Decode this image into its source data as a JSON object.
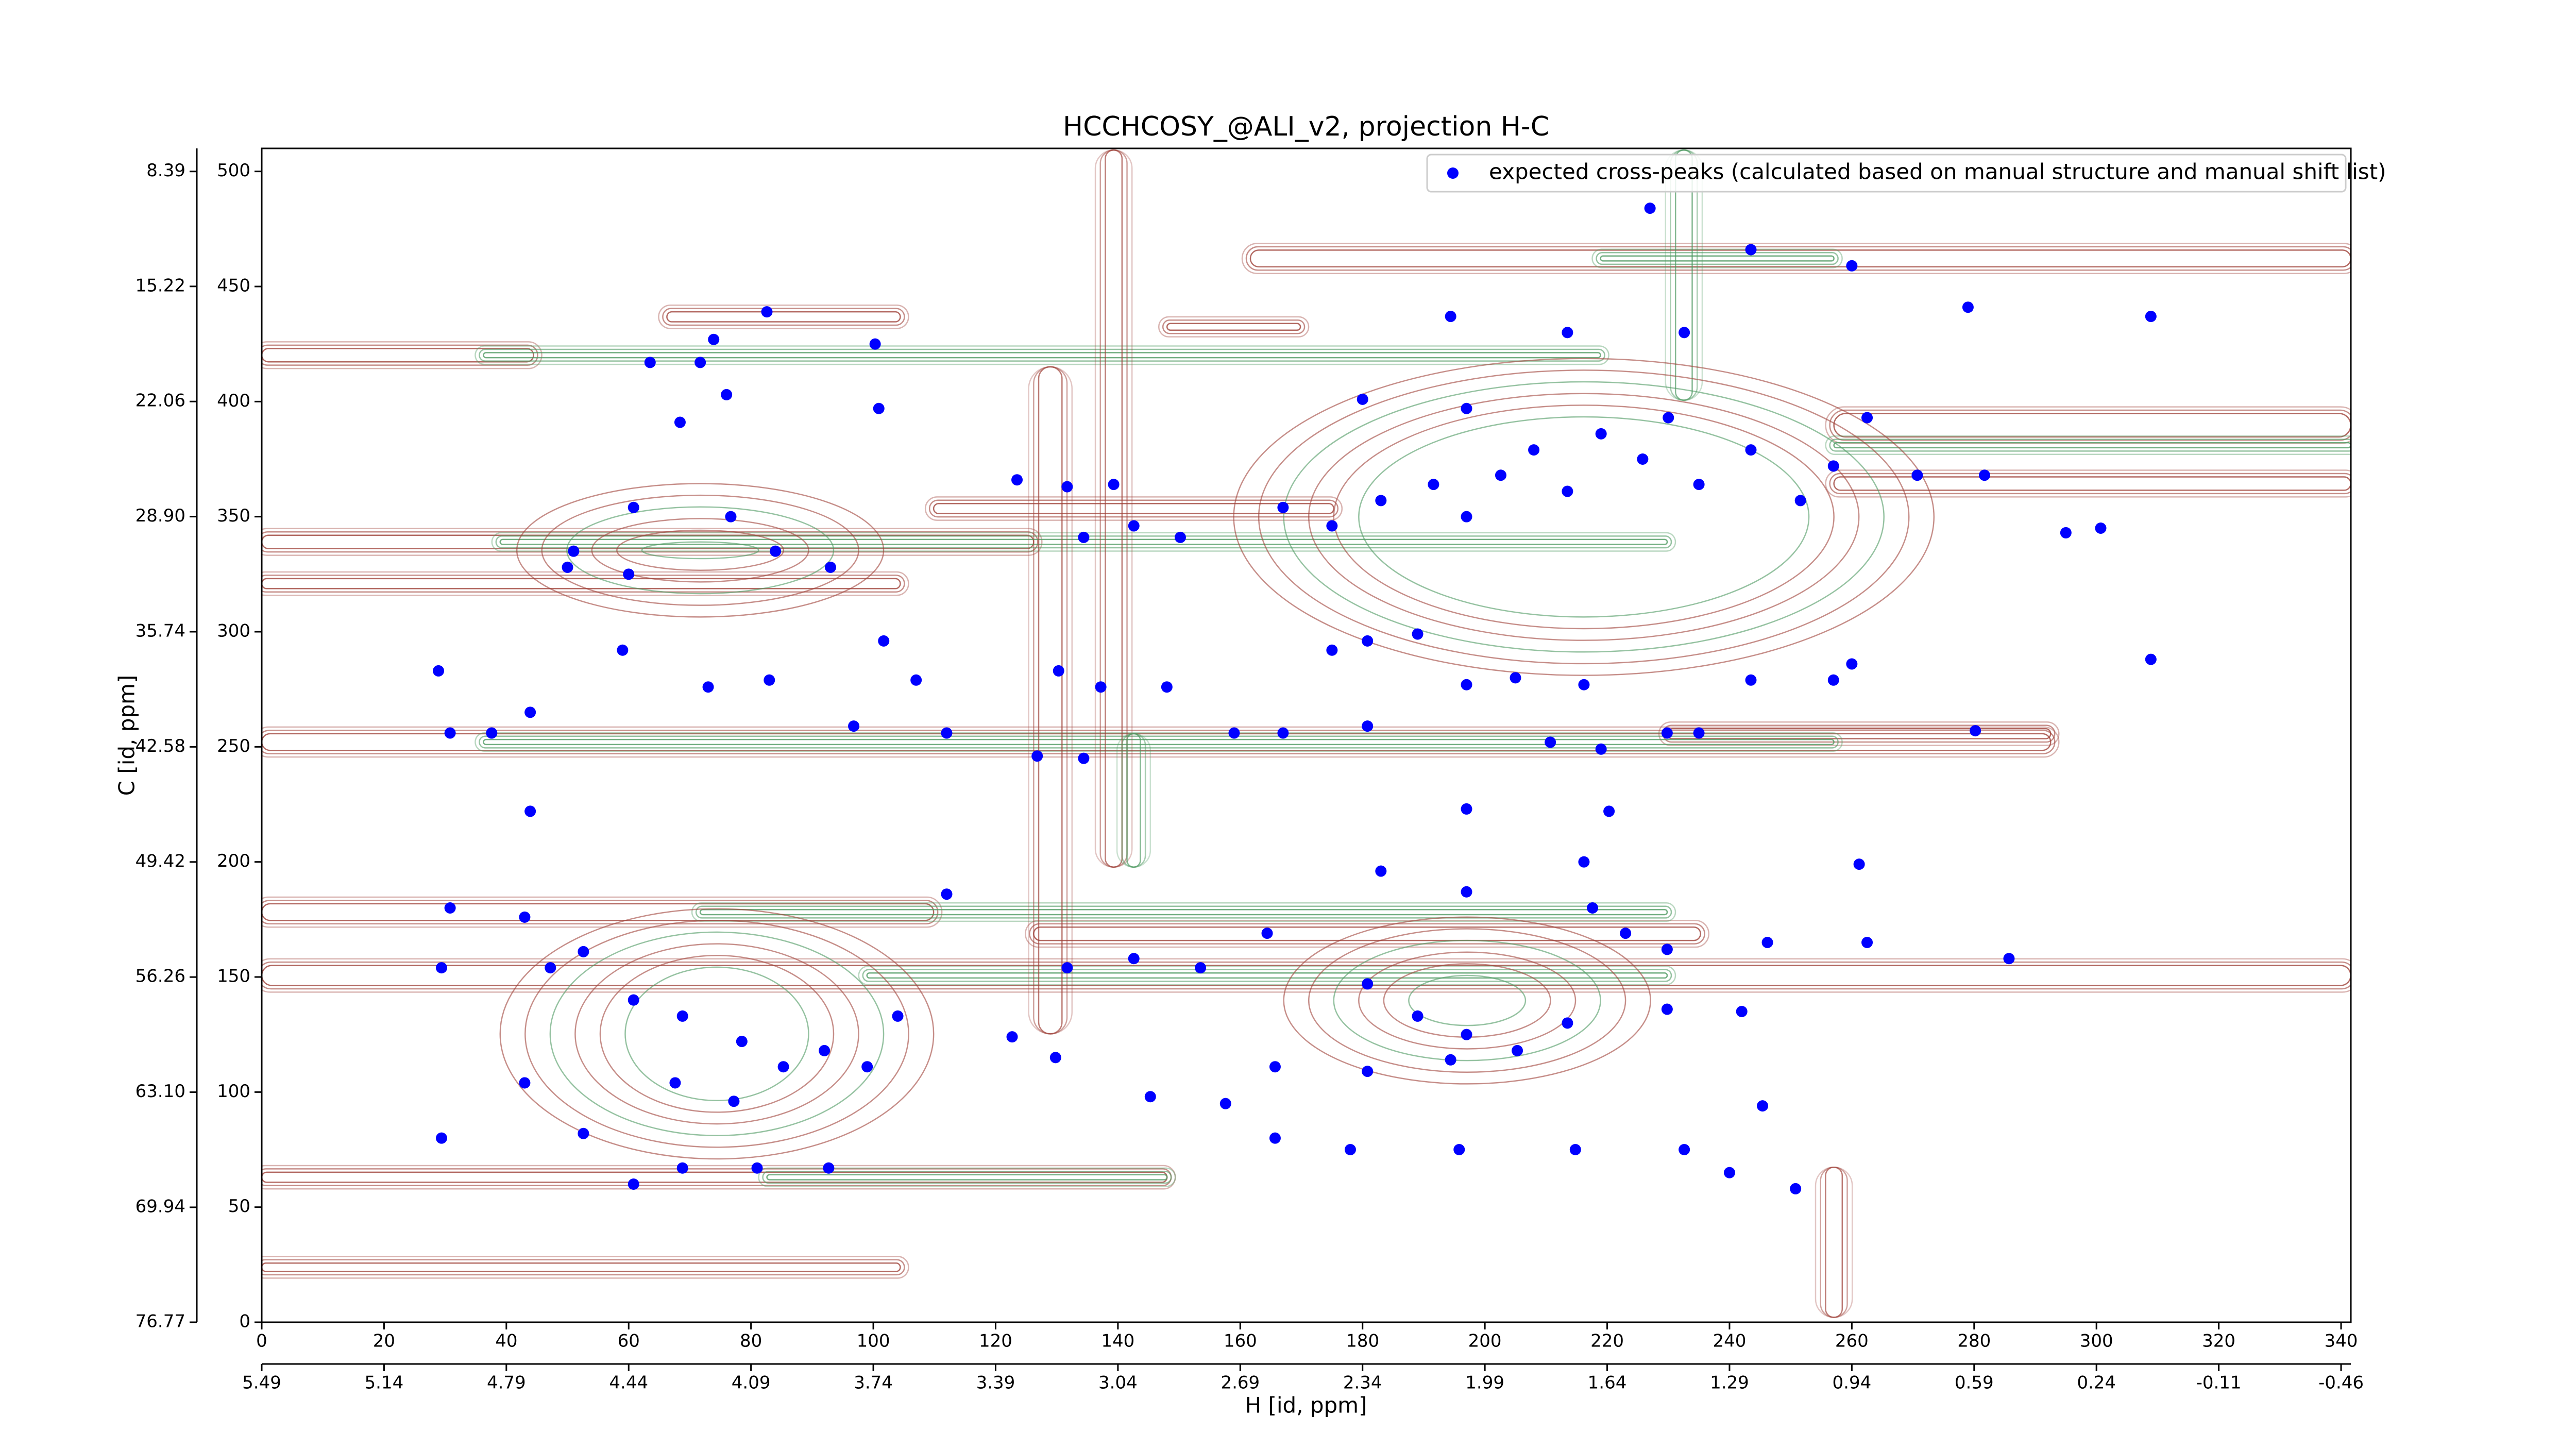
{
  "chart_data": {
    "type": "scatter",
    "title": "HCCHCOSY_@ALI_v2, projection H-C",
    "x_label": "H [id, ppm]",
    "y_label": "C [id, ppm]",
    "xlim": [
      0,
      341.6
    ],
    "xticks": [
      0,
      20,
      40,
      60,
      80,
      100,
      120,
      140,
      160,
      180,
      200,
      220,
      240,
      260,
      280,
      300,
      320,
      340
    ],
    "x2lim": [
      5.49,
      -0.488
    ],
    "x2ticks": [
      5.49,
      5.14,
      4.79,
      4.44,
      4.09,
      3.74,
      3.39,
      3.04,
      2.69,
      2.34,
      1.99,
      1.64,
      1.29,
      0.94,
      0.59,
      0.24,
      -0.11,
      -0.46
    ],
    "ylim": [
      0,
      510
    ],
    "yticks": [
      0,
      50,
      100,
      150,
      200,
      250,
      300,
      350,
      400,
      450,
      500
    ],
    "y2lim": [
      76.77,
      7.02
    ],
    "y2ticks": [
      76.77,
      69.94,
      {
        "value": 63.1,
        "label": "63.10"
      },
      56.26,
      49.42,
      42.58,
      35.74,
      {
        "value": 28.9,
        "label": "28.90"
      },
      22.06,
      15.22,
      8.39
    ],
    "legend": "upper right",
    "series": [
      {
        "name": "expected cross-peaks (calculated based on manual structure and manual shift list)",
        "color": "#0000ff",
        "x": [
          82.6,
          73.9,
          71.7,
          63.5,
          76,
          68.4,
          100.3,
          100.9,
          60.8,
          76.7,
          84,
          93,
          51,
          50,
          60,
          101.7,
          28.9,
          59,
          73,
          83,
          107,
          30.8,
          37.6,
          43.9,
          96.8,
          112,
          43.9,
          29.4,
          43,
          30.8,
          47.2,
          52.6,
          60.8,
          68.8,
          78.5,
          85.3,
          92,
          99,
          104,
          112,
          67.6,
          77.2,
          43,
          29.4,
          52.6,
          60.8,
          68.8,
          81,
          92.7,
          123.5,
          131.7,
          139.3,
          142.6,
          134.4,
          150.2,
          167,
          175,
          183,
          191.6,
          197,
          202.6,
          208,
          213.5,
          219,
          225.8,
          230,
          235,
          243.5,
          251.6,
          257,
          262.5,
          270.7,
          281.7,
          295,
          300.7,
          260,
          279,
          308.9,
          227,
          243.5,
          194.4,
          180,
          197,
          213.5,
          232.6,
          189,
          180.8,
          175,
          197,
          205,
          216.2,
          229.8,
          219,
          210.7,
          235,
          257,
          260,
          280.2,
          308.9,
          243.5,
          130.3,
          137.2,
          148,
          159,
          167,
          180.8,
          126.8,
          134.4,
          197,
          216.2,
          220.3,
          261.2,
          183,
          197,
          217.6,
          223,
          229.8,
          246.2,
          262.5,
          285.7,
          131.7,
          142.6,
          153.5,
          164.4,
          180.8,
          189,
          197,
          205.3,
          213.5,
          229.8,
          242,
          180.8,
          194.4,
          165.7,
          145.3,
          157.6,
          165.7,
          178,
          195.8,
          214.8,
          232.6,
          245.4,
          240,
          250.8,
          122.7,
          129.8
        ],
        "y": [
          439,
          427,
          417,
          417,
          403,
          391,
          425,
          397,
          354,
          350,
          335,
          328,
          335,
          328,
          325,
          296,
          283,
          292,
          276,
          279,
          279,
          256,
          256,
          265,
          259,
          256,
          222,
          154,
          176,
          180,
          154,
          161,
          140,
          133,
          122,
          111,
          118,
          111,
          133,
          186,
          104,
          96,
          104,
          80,
          82,
          60,
          67,
          67,
          67,
          366,
          363,
          364,
          346,
          341,
          341,
          354,
          346,
          357,
          364,
          350,
          368,
          379,
          361,
          386,
          375,
          393,
          364,
          379,
          357,
          372,
          393,
          368,
          368,
          343,
          345,
          459,
          441,
          437,
          484,
          466,
          437,
          401,
          397,
          430,
          430,
          299,
          296,
          292,
          277,
          280,
          277,
          256,
          249,
          252,
          256,
          279,
          286,
          257,
          288,
          279,
          283,
          276,
          276,
          256,
          256,
          259,
          246,
          245,
          223,
          200,
          222,
          199,
          196,
          187,
          180,
          169,
          162,
          165,
          165,
          158,
          154,
          158,
          154,
          169,
          147,
          133,
          125,
          118,
          130,
          136,
          135,
          109,
          114,
          111,
          98,
          95,
          80,
          75,
          75,
          75,
          75,
          94,
          65,
          58,
          124,
          115
        ]
      }
    ]
  }
}
